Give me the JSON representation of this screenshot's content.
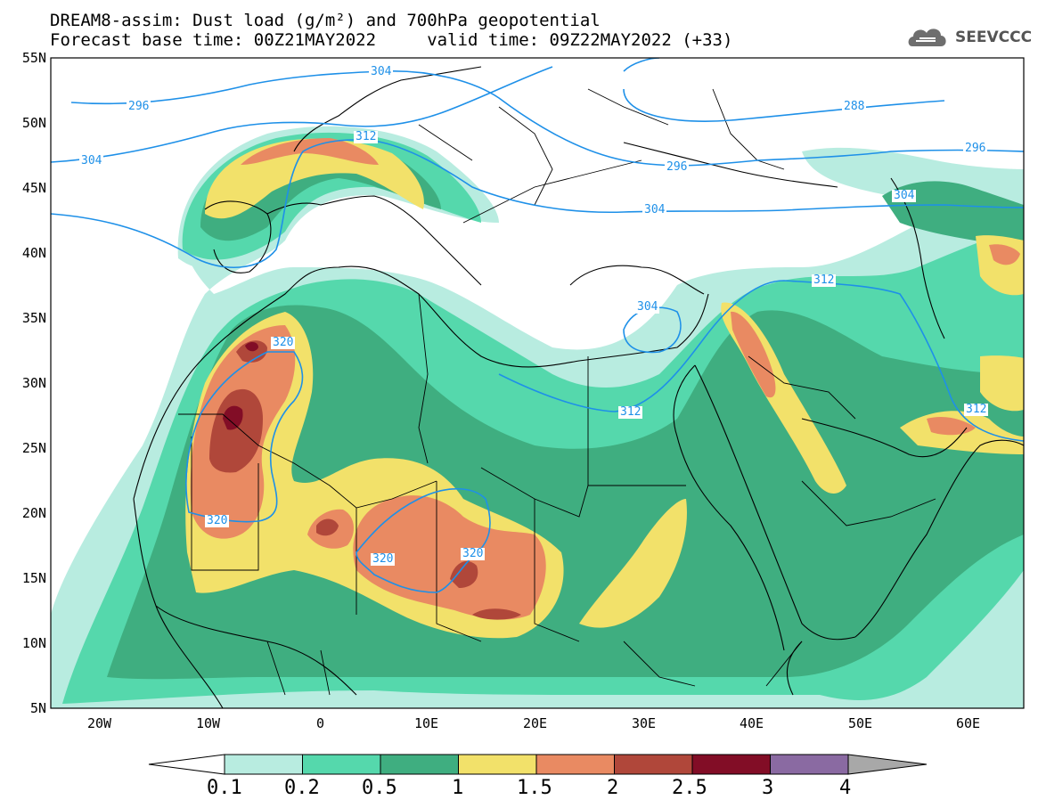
{
  "header": {
    "line1": "DREAM8-assim: Dust load (g/m²) and 700hPa geopotential",
    "line2": "Forecast base time: 00Z21MAY2022     valid time: 09Z22MAY2022 (+33)",
    "logo_text": "SEEVCCC"
  },
  "map": {
    "lat_ticks": [
      "55N",
      "50N",
      "45N",
      "40N",
      "35N",
      "30N",
      "25N",
      "20N",
      "15N",
      "10N",
      "5N"
    ],
    "lon_ticks": [
      "20W",
      "10W",
      "0",
      "10E",
      "20E",
      "30E",
      "40E",
      "50E",
      "60E"
    ],
    "contour_labels": [
      "304",
      "296",
      "304",
      "312",
      "288",
      "296",
      "296",
      "304",
      "304",
      "312",
      "320",
      "304",
      "312",
      "312",
      "320",
      "320",
      "320"
    ]
  },
  "colorbar": {
    "labels": [
      "0.1",
      "0.2",
      "0.5",
      "1",
      "1.5",
      "2",
      "2.5",
      "3",
      "4"
    ],
    "colors": [
      "#b8ece0",
      "#55d8ac",
      "#3fae80",
      "#f2e16a",
      "#e98a62",
      "#b0473a",
      "#820d26",
      "#8a6aa2",
      "#a8a8a8"
    ]
  }
}
